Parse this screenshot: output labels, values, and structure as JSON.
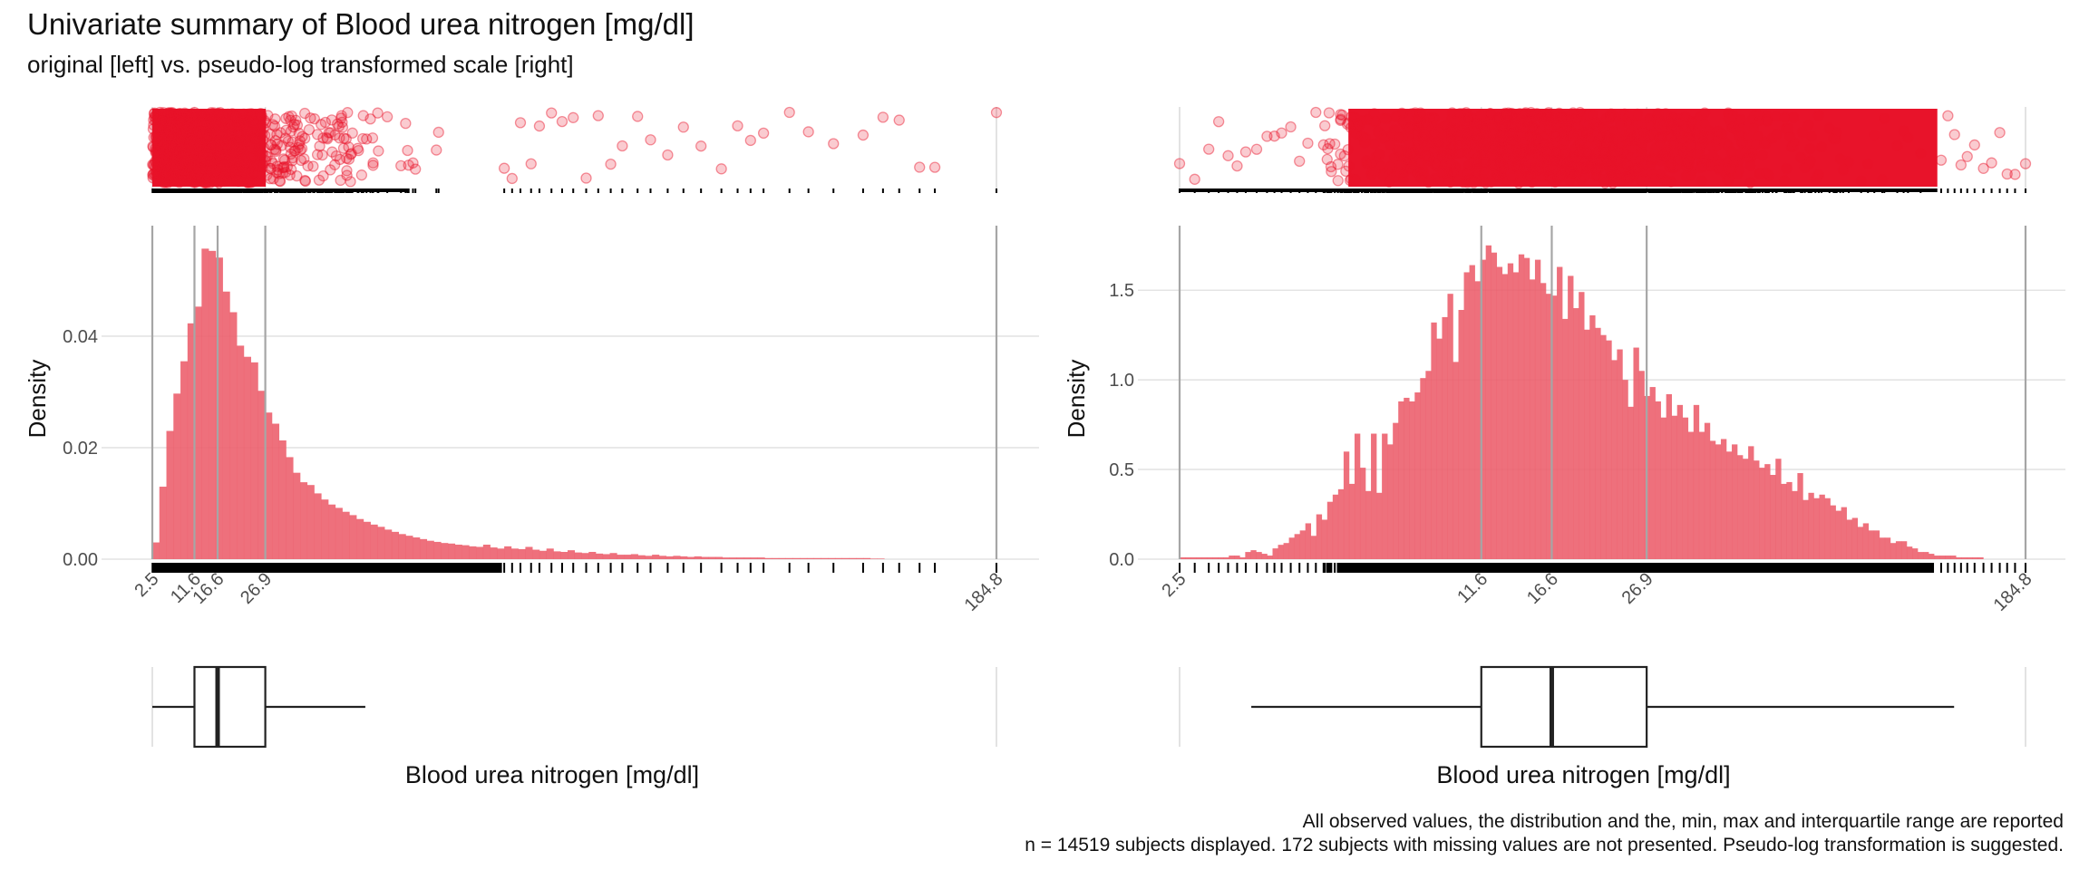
{
  "title": "Univariate summary of Blood urea nitrogen [mg/dl]",
  "subtitle": "original [left] vs. pseudo-log transformed scale [right]",
  "caption": {
    "line1": "All observed values, the distribution and the, min, max and interquartile range are reported",
    "line2": "n = 14519 subjects displayed. 172 subjects with missing values are not presented. Pseudo-log transformation is suggested."
  },
  "colors": {
    "points": "#e8132a",
    "bars": "#ec5c6a",
    "ref_lines": "#a6a6a6",
    "grid": "#e4e4e4",
    "rug": "#000000",
    "box_stroke": "#222222"
  },
  "chart_data": [
    {
      "type": "histogram",
      "panel": "left",
      "scale": "original",
      "xlabel": "Blood urea nitrogen [mg/dl]",
      "ylabel": "Density",
      "xlim": [
        0.8,
        198
      ],
      "ylim": [
        0,
        0.0595
      ],
      "yticks": [
        0,
        0.02,
        0.04
      ],
      "ytick_labels": [
        "0.00",
        "0.02",
        "0.04"
      ],
      "xticks": [
        2.5,
        11.6,
        16.6,
        26.9,
        184.8
      ],
      "xtick_labels": [
        "2.5",
        "11.6",
        "16.6",
        "26.9",
        "184.8"
      ],
      "reference_lines": [
        2.5,
        11.6,
        16.6,
        26.9,
        184.8
      ],
      "grid": true,
      "bins": {
        "start": 2.5,
        "width": 1.52,
        "density": [
          0.003,
          0.013,
          0.023,
          0.0297,
          0.0355,
          0.0423,
          0.0453,
          0.0557,
          0.0553,
          0.0541,
          0.048,
          0.0443,
          0.0383,
          0.0363,
          0.0353,
          0.0302,
          0.0263,
          0.0243,
          0.0213,
          0.0183,
          0.0155,
          0.0138,
          0.0133,
          0.0118,
          0.0107,
          0.0098,
          0.0092,
          0.0085,
          0.0079,
          0.0072,
          0.0067,
          0.0062,
          0.0058,
          0.0053,
          0.0049,
          0.0045,
          0.0042,
          0.0039,
          0.0036,
          0.0033,
          0.0031,
          0.0029,
          0.0028,
          0.0026,
          0.0025,
          0.0023,
          0.0022,
          0.0026,
          0.0021,
          0.0019,
          0.0023,
          0.0019,
          0.0018,
          0.0022,
          0.0017,
          0.0015,
          0.0019,
          0.0014,
          0.0013,
          0.0016,
          0.0012,
          0.0011,
          0.0013,
          0.001,
          0.0009,
          0.0011,
          0.0008,
          0.0008,
          0.0009,
          0.0007,
          0.0006,
          0.0008,
          0.0006,
          0.0005,
          0.0006,
          0.0005,
          0.0004,
          0.0005,
          0.0004,
          0.0004,
          0.0004,
          0.0003,
          0.0003,
          0.0003,
          0.0003,
          0.0003,
          0.0003,
          0.0002,
          0.0002,
          0.0002,
          0.0002,
          0.0002,
          0.0002,
          0.0002,
          0.0002,
          0.0002,
          0.0002,
          0.0002,
          0.0002,
          0.0002,
          0.0002,
          0.0002,
          0.0001,
          0.0001
        ]
      },
      "boxplot": {
        "min": 2.5,
        "q1": 11.6,
        "median": 16.6,
        "q3": 26.9,
        "whisker_high": 48.5,
        "max": 184.8
      },
      "sparse_values": [
        78.5,
        80.2,
        82,
        84.3,
        86.1,
        88.7,
        91,
        93.4,
        96.2,
        98.8,
        101.5,
        104,
        107.3,
        110.1,
        113.8,
        117.2,
        121,
        125.4,
        128.9,
        131.7,
        134.5,
        140.1,
        144.2,
        149.6,
        156,
        160.3,
        163.8,
        168.2,
        171.5,
        184.8
      ]
    },
    {
      "type": "histogram",
      "panel": "right",
      "scale": "pseudo-log",
      "xlabel": "Blood urea nitrogen [mg/dl]",
      "ylabel": "Density",
      "xlim": [
        2.5,
        184.8
      ],
      "ylim": [
        0,
        1.85
      ],
      "yticks": [
        0,
        0.5,
        1.0,
        1.5
      ],
      "ytick_labels": [
        "0.0",
        "0.5",
        "1.0",
        "1.5"
      ],
      "xticks": [
        2.5,
        11.6,
        16.6,
        26.9,
        184.8
      ],
      "xtick_labels": [
        "2.5",
        "11.6",
        "16.6",
        "26.9",
        "184.8"
      ],
      "reference_lines": [
        2.5,
        11.6,
        16.6,
        26.9,
        184.8
      ],
      "grid": true,
      "bins": {
        "start": 2.5,
        "ratio": 1.0282,
        "density": [
          0.01,
          0.01,
          0.01,
          0.01,
          0.01,
          0.01,
          0.01,
          0.01,
          0.01,
          0.02,
          0.02,
          0.01,
          0.04,
          0.05,
          0.04,
          0.03,
          0.02,
          0.06,
          0.08,
          0.09,
          0.12,
          0.14,
          0.16,
          0.2,
          0.13,
          0.25,
          0.22,
          0.32,
          0.36,
          0.39,
          0.6,
          0.42,
          0.7,
          0.51,
          0.38,
          0.7,
          0.37,
          0.7,
          0.64,
          0.76,
          0.88,
          0.9,
          0.88,
          0.93,
          1.01,
          1.05,
          1.32,
          1.23,
          1.35,
          1.48,
          1.1,
          1.39,
          1.6,
          1.64,
          1.55,
          1.67,
          1.75,
          1.71,
          1.63,
          1.59,
          1.65,
          1.6,
          1.7,
          1.68,
          1.56,
          1.67,
          1.54,
          1.48,
          1.47,
          1.63,
          1.34,
          1.58,
          1.4,
          1.49,
          1.28,
          1.36,
          1.29,
          1.25,
          1.22,
          1.11,
          1.17,
          1.0,
          0.85,
          1.18,
          1.05,
          0.91,
          0.96,
          0.88,
          0.79,
          0.92,
          0.8,
          0.86,
          0.79,
          0.71,
          0.86,
          0.71,
          0.76,
          0.66,
          0.64,
          0.67,
          0.6,
          0.64,
          0.58,
          0.56,
          0.63,
          0.55,
          0.51,
          0.53,
          0.47,
          0.56,
          0.42,
          0.43,
          0.38,
          0.48,
          0.33,
          0.37,
          0.34,
          0.36,
          0.34,
          0.3,
          0.27,
          0.29,
          0.22,
          0.23,
          0.18,
          0.2,
          0.16,
          0.16,
          0.12,
          0.12,
          0.09,
          0.1,
          0.1,
          0.07,
          0.06,
          0.04,
          0.04,
          0.03,
          0.02,
          0.02,
          0.02,
          0.02,
          0.01,
          0.01,
          0.01,
          0.01,
          0.01
        ]
      },
      "boxplot": {
        "min": 2.5,
        "q1": 11.6,
        "median": 16.6,
        "q3": 26.9,
        "whisker_low": 3.6,
        "whisker_high": 128.5,
        "max": 184.8
      },
      "sparse_low": [
        2.5,
        2.7,
        2.9,
        3.05,
        3.2,
        3.35,
        3.5,
        3.7,
        3.9,
        4.05,
        4.2,
        4.4,
        4.6,
        4.8,
        5.0,
        5.2,
        5.4
      ],
      "sparse_high": [
        120.3,
        124.5,
        128.8,
        133.1,
        137.4,
        142.6,
        149.2,
        155.5,
        162.1,
        168.3,
        175.2,
        184.8
      ]
    }
  ]
}
